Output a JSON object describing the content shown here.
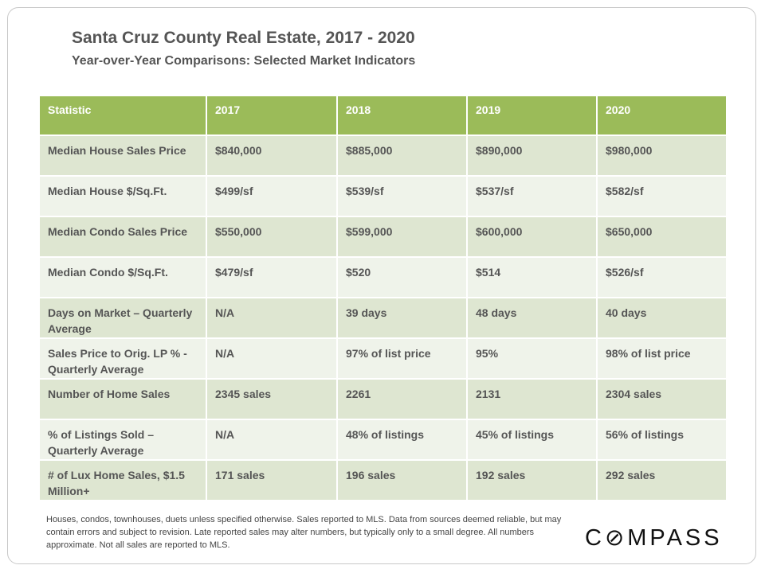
{
  "header": {
    "title": "Santa Cruz County Real Estate, 2017 - 2020",
    "subtitle": "Year-over-Year  Comparisons:  Selected Market Indicators"
  },
  "table": {
    "columns": [
      "Statistic",
      "2017",
      "2018",
      "2019",
      "2020"
    ],
    "rows": [
      [
        "Median House Sales Price",
        "$840,000",
        "$885,000",
        "$890,000",
        "$980,000"
      ],
      [
        "Median House $/Sq.Ft.",
        "$499/sf",
        "$539/sf",
        "$537/sf",
        "$582/sf"
      ],
      [
        "Median Condo Sales Price",
        "$550,000",
        "$599,000",
        "$600,000",
        "$650,000"
      ],
      [
        "Median Condo $/Sq.Ft.",
        "$479/sf",
        "$520",
        "$514",
        "$526/sf"
      ],
      [
        "Days on Market – Quarterly Average",
        "N/A",
        "39 days",
        "48 days",
        "40 days"
      ],
      [
        "Sales Price to Orig. LP % - Quarterly Average",
        "N/A",
        "97% of list price",
        "95%",
        "98% of list price"
      ],
      [
        "Number of Home Sales",
        "2345 sales",
        "2261",
        "2131",
        "2304 sales"
      ],
      [
        "% of Listings Sold – Quarterly Average",
        "N/A",
        "48% of listings",
        "45% of listings",
        "56% of listings"
      ],
      [
        "# of Lux Home Sales, $1.5 Million+",
        "171 sales",
        "196 sales",
        "192 sales",
        "292 sales"
      ]
    ]
  },
  "footnote": "Houses, condos, townhouses, duets unless specified otherwise. Sales reported to MLS. Data from sources deemed reliable, but may contain errors and subject to revision. Late reported sales may alter numbers, but typically only to a small degree. All numbers approximate. Not all sales are reported to MLS.",
  "logo": "COMPASS",
  "colors": {
    "header": "#9bbb59",
    "row_dark": "#dee6d1",
    "row_light": "#eff3ea"
  }
}
